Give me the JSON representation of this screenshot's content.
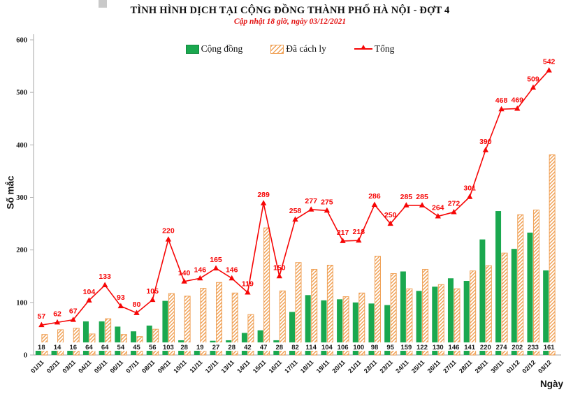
{
  "header": {
    "title": "TÌNH HÌNH DỊCH TẠI CỘNG ĐỒNG THÀNH PHỐ HÀ NỘI - ĐỢT 4",
    "subtitle": "Cập nhật 18 giờ, ngày 03/12/2021"
  },
  "legend": {
    "community": "Cộng đồng",
    "quarantined": "Đã cách ly",
    "total": "Tổng"
  },
  "axes": {
    "y_label": "Số mắc",
    "x_label": "Ngày",
    "y_ticks": [
      0,
      100,
      200,
      300,
      400,
      500,
      600
    ]
  },
  "colors": {
    "community": "#1aa84f",
    "community_border": "#128a3f",
    "quarantined": "#f0a156",
    "total_line": "#f60606",
    "axis": "#b3b3b3",
    "label_text": "#1a1a1a"
  },
  "chart_data": {
    "type": "bar",
    "title": "TÌNH HÌNH DỊCH TẠI CỘNG ĐỒNG THÀNH PHỐ HÀ NỘI - ĐỢT 4",
    "subtitle": "Cập nhật 18 giờ, ngày 03/12/2021",
    "xlabel": "Ngày",
    "ylabel": "Số mắc",
    "ylim": [
      0,
      600
    ],
    "legend_position": "top",
    "grid": false,
    "categories": [
      "01/11",
      "02/11",
      "03/11",
      "04/11",
      "05/11",
      "06/11",
      "07/11",
      "08/11",
      "09/11",
      "10/11",
      "11/11",
      "12/11",
      "13/11",
      "14/11",
      "15/11",
      "16/11",
      "17/11",
      "18/11",
      "19/11",
      "20/11",
      "21/11",
      "22/11",
      "23/11",
      "24/11",
      "25/11",
      "26/11",
      "27/11",
      "28/11",
      "29/11",
      "30/11",
      "01/12",
      "02/12",
      "03/12"
    ],
    "series": [
      {
        "name": "Cộng đồng",
        "type": "bar",
        "style": "solid-green",
        "values": [
          18,
          14,
          16,
          64,
          64,
          54,
          45,
          56,
          103,
          28,
          19,
          27,
          28,
          42,
          47,
          28,
          82,
          114,
          104,
          106,
          100,
          98,
          95,
          159,
          122,
          130,
          146,
          141,
          220,
          274,
          202,
          233,
          161
        ]
      },
      {
        "name": "Đã cách ly",
        "type": "bar",
        "style": "orange-hatched",
        "values": [
          39,
          48,
          51,
          40,
          69,
          39,
          35,
          49,
          117,
          112,
          127,
          138,
          118,
          77,
          242,
          122,
          176,
          163,
          171,
          111,
          118,
          188,
          155,
          126,
          163,
          134,
          126,
          160,
          170,
          194,
          267,
          276,
          381
        ]
      },
      {
        "name": "Tổng",
        "type": "line",
        "style": "red-line-triangle-markers",
        "values": [
          57,
          62,
          67,
          104,
          133,
          93,
          80,
          105,
          220,
          140,
          146,
          165,
          146,
          119,
          289,
          150,
          258,
          277,
          275,
          217,
          218,
          286,
          250,
          285,
          285,
          264,
          272,
          301,
          390,
          468,
          469,
          509,
          542
        ]
      }
    ]
  }
}
